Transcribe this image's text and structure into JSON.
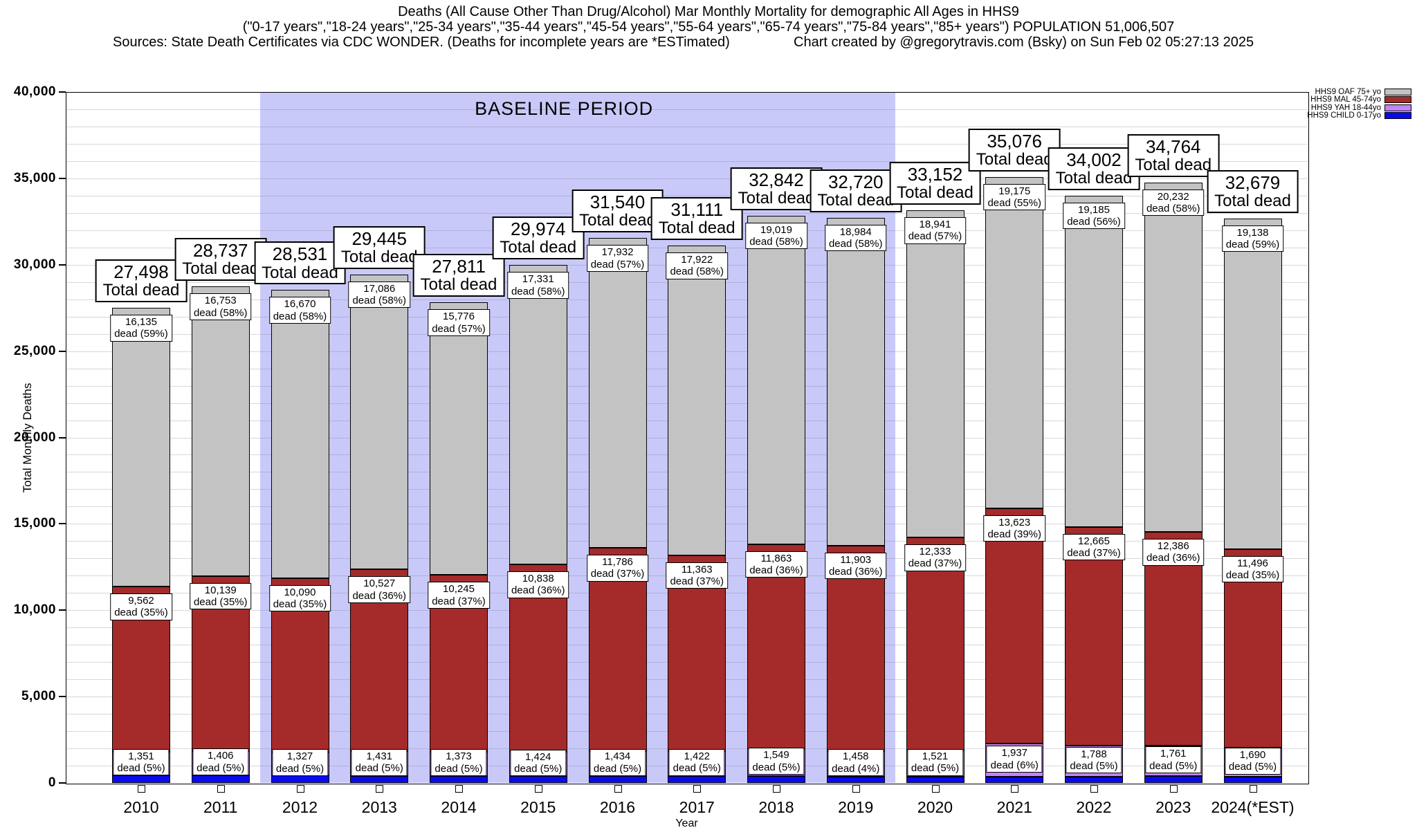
{
  "header": {
    "title_line1": "Deaths (All Cause Other Than Drug/Alcohol) Mar Monthly Mortality for demographic All Ages in HHS9",
    "title_line2": "(\"0-17 years\",\"18-24 years\",\"25-34 years\",\"35-44 years\",\"45-54 years\",\"55-64 years\",\"65-74 years\",\"75-84 years\",\"85+ years\") POPULATION 51,006,507",
    "sources": "Sources: State Death Certificates via CDC WONDER. (Deaths for incomplete years are *ESTimated)",
    "credit": "Chart created by @gregorytravis.com (Bsky) on Sun Feb 02 05:27:13 2025"
  },
  "chart_data": {
    "type": "bar",
    "stacked": true,
    "title": "Deaths (All Cause Other Than Drug/Alcohol) Mar Monthly Mortality for demographic All Ages in HHS9",
    "xlabel": "Year",
    "ylabel": "Total Monthly Deaths",
    "ylim": [
      0,
      40000
    ],
    "yticks": [
      0,
      5000,
      10000,
      15000,
      20000,
      25000,
      30000,
      35000,
      40000
    ],
    "minor_grid_step": 1000,
    "grid": true,
    "legend_position": "top-right-outside",
    "categories": [
      "2010",
      "2011",
      "2012",
      "2013",
      "2014",
      "2015",
      "2016",
      "2017",
      "2018",
      "2019",
      "2020",
      "2021",
      "2022",
      "2023",
      "2024(*EST)"
    ],
    "totals": [
      27498,
      28737,
      28531,
      29445,
      27811,
      29974,
      31540,
      31111,
      32842,
      32720,
      33152,
      35076,
      34002,
      34764,
      32679
    ],
    "total_label_suffix": "Total dead",
    "segment_label_suffix": "dead",
    "series": [
      {
        "name": "HHS9 OAF 75+ yo",
        "color": "#c3c3c3",
        "values": [
          16135,
          16753,
          16670,
          17086,
          15776,
          17331,
          17932,
          17922,
          19019,
          18984,
          18941,
          19175,
          19185,
          20232,
          19138
        ],
        "pct": [
          59,
          58,
          58,
          58,
          57,
          58,
          57,
          58,
          58,
          58,
          57,
          55,
          56,
          58,
          59
        ],
        "labeled": true
      },
      {
        "name": "HHS9 MAL 45-74yo",
        "color": "#a52a2a",
        "values": [
          9562,
          10139,
          10090,
          10527,
          10245,
          10838,
          11786,
          11363,
          11863,
          11903,
          12333,
          13623,
          12665,
          12386,
          11496
        ],
        "pct": [
          35,
          35,
          35,
          36,
          37,
          36,
          37,
          37,
          36,
          36,
          37,
          39,
          37,
          36,
          35
        ],
        "labeled": true
      },
      {
        "name": "HHS9 YAH 18-44yo",
        "color": "#c285f8",
        "values": [
          1351,
          1406,
          1327,
          1431,
          1373,
          1424,
          1434,
          1422,
          1549,
          1458,
          1521,
          1937,
          1788,
          1761,
          1690
        ],
        "pct": [
          5,
          5,
          5,
          5,
          5,
          5,
          5,
          5,
          5,
          4,
          5,
          6,
          5,
          5,
          5
        ],
        "labeled": true
      },
      {
        "name": "HHS9 CHILD 0-17yo",
        "color": "#0a0af0",
        "values": [
          450,
          439,
          444,
          401,
          417,
          381,
          388,
          404,
          411,
          375,
          357,
          341,
          364,
          385,
          355
        ],
        "pct": null,
        "labeled": false,
        "derived_from_remainder": true
      }
    ],
    "annotations": {
      "baseline_label": "BASELINE PERIOD",
      "baseline_start_year": "2012",
      "baseline_end_year": "2019",
      "baseline_color": "#c9c9f9"
    }
  }
}
